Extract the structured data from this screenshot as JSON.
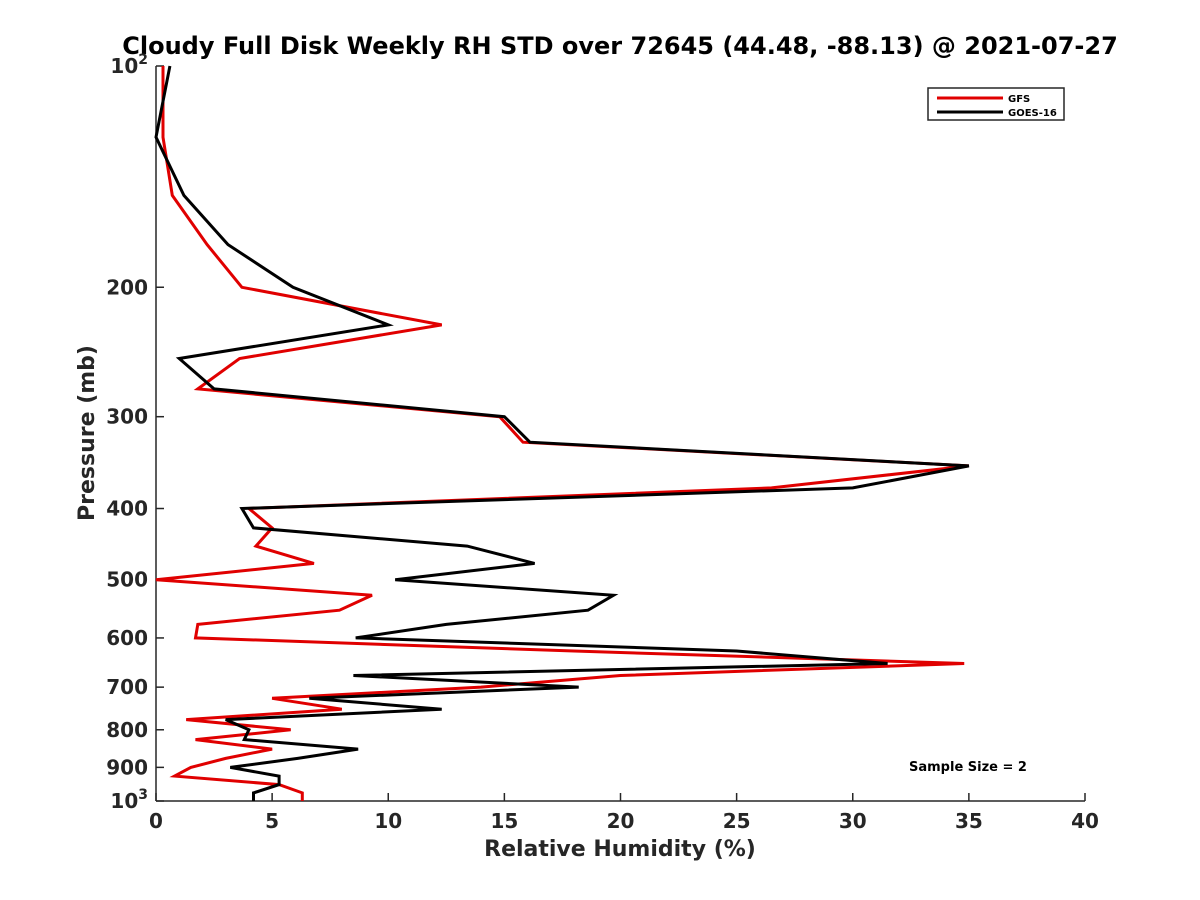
{
  "chart_data": {
    "type": "line",
    "title": "Cloudy Full Disk Weekly RH STD over 72645 (44.48, -88.13) @ 2021-07-27",
    "xlabel": "Relative Humidity (%)",
    "ylabel": "Pressure (mb)",
    "xlim": [
      0,
      40
    ],
    "ylim": [
      100,
      1000
    ],
    "yscale": "log",
    "y_reversed": true,
    "x_ticks": [
      "0",
      "5",
      "10",
      "15",
      "20",
      "25",
      "30",
      "35",
      "40"
    ],
    "y_ticks": [
      {
        "value": 100,
        "base": "10",
        "exp": "2"
      },
      {
        "value": 200,
        "label": "200"
      },
      {
        "value": 300,
        "label": "300"
      },
      {
        "value": 400,
        "label": "400"
      },
      {
        "value": 500,
        "label": "500"
      },
      {
        "value": 600,
        "label": "600"
      },
      {
        "value": 700,
        "label": "700"
      },
      {
        "value": 800,
        "label": "800"
      },
      {
        "value": 900,
        "label": "900"
      },
      {
        "value": 1000,
        "base": "10",
        "exp": "3"
      }
    ],
    "legend_position": "top-right",
    "annotation": "Sample Size = 2",
    "series": [
      {
        "name": "GFS",
        "color": "#e00000",
        "pressure": [
          100,
          125,
          150,
          175,
          200,
          225,
          250,
          275,
          300,
          325,
          350,
          375,
          400,
          425,
          450,
          475,
          500,
          525,
          550,
          575,
          600,
          625,
          650,
          675,
          700,
          725,
          750,
          775,
          800,
          825,
          850,
          875,
          900,
          925,
          950,
          975,
          1000
        ],
        "rh": [
          0.3,
          0.3,
          0.7,
          2.2,
          3.7,
          12.3,
          3.6,
          1.8,
          14.8,
          15.8,
          35.0,
          26.5,
          4.0,
          5.0,
          4.3,
          6.8,
          0.0,
          9.3,
          7.9,
          1.8,
          1.7,
          18.0,
          34.8,
          20.0,
          14.0,
          5.0,
          8.0,
          1.3,
          5.8,
          1.7,
          5.0,
          3.0,
          1.5,
          0.8,
          5.3,
          6.3,
          6.3
        ]
      },
      {
        "name": "GOES-16",
        "color": "#000000",
        "pressure": [
          100,
          125,
          150,
          175,
          200,
          225,
          250,
          275,
          300,
          325,
          350,
          375,
          400,
          425,
          450,
          475,
          500,
          525,
          550,
          575,
          600,
          625,
          650,
          675,
          700,
          725,
          750,
          775,
          800,
          825,
          850,
          875,
          900,
          925,
          950,
          975,
          1000
        ],
        "rh": [
          0.6,
          0.0,
          1.2,
          3.1,
          5.9,
          10.0,
          1.0,
          2.5,
          15.0,
          16.1,
          35.0,
          30.0,
          3.7,
          4.2,
          13.4,
          16.3,
          10.3,
          19.7,
          18.6,
          12.5,
          8.6,
          25.0,
          31.5,
          8.5,
          18.2,
          6.6,
          12.3,
          3.0,
          4.0,
          3.8,
          8.7,
          6.1,
          3.2,
          5.3,
          5.3,
          4.2,
          4.2
        ]
      }
    ]
  }
}
